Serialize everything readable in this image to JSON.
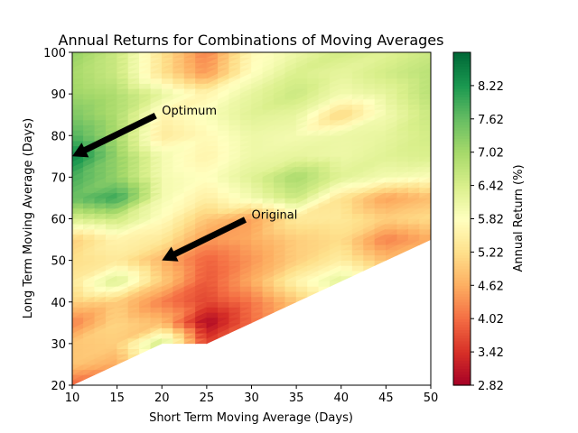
{
  "chart_data": {
    "type": "heatmap",
    "subtype": "filled-contour",
    "title": "Annual Returns for Combinations of Moving Averages",
    "xlabel": "Short Term Moving Average (Days)",
    "ylabel": "Long Term Moving Average (Days)",
    "xlim": [
      10,
      50
    ],
    "ylim": [
      20,
      100
    ],
    "x_ticks": [
      10,
      15,
      20,
      25,
      30,
      35,
      40,
      45,
      50
    ],
    "y_ticks": [
      20,
      30,
      40,
      50,
      60,
      70,
      80,
      90,
      100
    ],
    "x": [
      10,
      15,
      20,
      25,
      30,
      35,
      40,
      45,
      50
    ],
    "y": [
      20,
      25,
      30,
      35,
      40,
      45,
      50,
      55,
      60,
      65,
      70,
      75,
      80,
      85,
      90,
      95,
      100
    ],
    "z": [
      [
        3.9,
        null,
        null,
        null,
        null,
        null,
        null,
        null,
        null
      ],
      [
        4.9,
        4.6,
        null,
        null,
        null,
        null,
        null,
        null,
        null
      ],
      [
        4.9,
        5.0,
        6.6,
        3.6,
        null,
        null,
        null,
        null,
        null
      ],
      [
        4.2,
        5.1,
        4.8,
        2.9,
        4.0,
        null,
        null,
        null,
        null
      ],
      [
        5.0,
        5.0,
        4.2,
        3.6,
        4.1,
        4.9,
        null,
        null,
        null
      ],
      [
        5.4,
        6.4,
        5.0,
        3.8,
        4.6,
        5.6,
        6.3,
        null,
        null
      ],
      [
        5.2,
        5.4,
        4.7,
        3.9,
        4.4,
        5.0,
        5.5,
        4.8,
        null
      ],
      [
        5.0,
        5.6,
        5.4,
        4.4,
        4.6,
        5.0,
        5.2,
        4.2,
        4.6
      ],
      [
        6.4,
        6.6,
        5.8,
        4.9,
        4.5,
        5.4,
        5.4,
        5.0,
        5.2
      ],
      [
        7.6,
        8.0,
        6.0,
        5.5,
        6.0,
        6.6,
        5.3,
        4.5,
        4.8
      ],
      [
        7.9,
        7.2,
        6.0,
        5.8,
        6.3,
        7.0,
        6.3,
        6.0,
        5.9
      ],
      [
        8.5,
        7.2,
        6.0,
        5.6,
        6.1,
        6.2,
        6.1,
        6.3,
        6.4
      ],
      [
        7.8,
        7.0,
        5.4,
        5.7,
        6.1,
        6.0,
        6.1,
        6.2,
        6.5
      ],
      [
        7.4,
        6.9,
        5.6,
        5.9,
        6.3,
        6.2,
        5.1,
        6.0,
        6.6
      ],
      [
        7.1,
        6.9,
        6.2,
        5.6,
        6.2,
        6.6,
        6.0,
        6.2,
        6.8
      ],
      [
        7.0,
        6.6,
        5.3,
        4.4,
        5.8,
        6.4,
        6.2,
        6.5,
        6.8
      ],
      [
        7.2,
        6.6,
        5.3,
        4.2,
        5.7,
        6.1,
        6.5,
        6.3,
        6.6
      ]
    ],
    "colorbar": {
      "label": "Annual Return (%)",
      "ticks": [
        2.82,
        3.42,
        4.02,
        4.62,
        5.22,
        5.82,
        6.42,
        7.02,
        7.62,
        8.22
      ],
      "range": [
        2.82,
        8.82
      ],
      "colormap": "RdYlGn"
    },
    "annotations": [
      {
        "text": "Optimum",
        "text_at": [
          20,
          85
        ],
        "arrow_to": [
          10,
          75
        ]
      },
      {
        "text": "Original",
        "text_at": [
          30,
          60
        ],
        "arrow_to": [
          20,
          50
        ]
      }
    ]
  }
}
